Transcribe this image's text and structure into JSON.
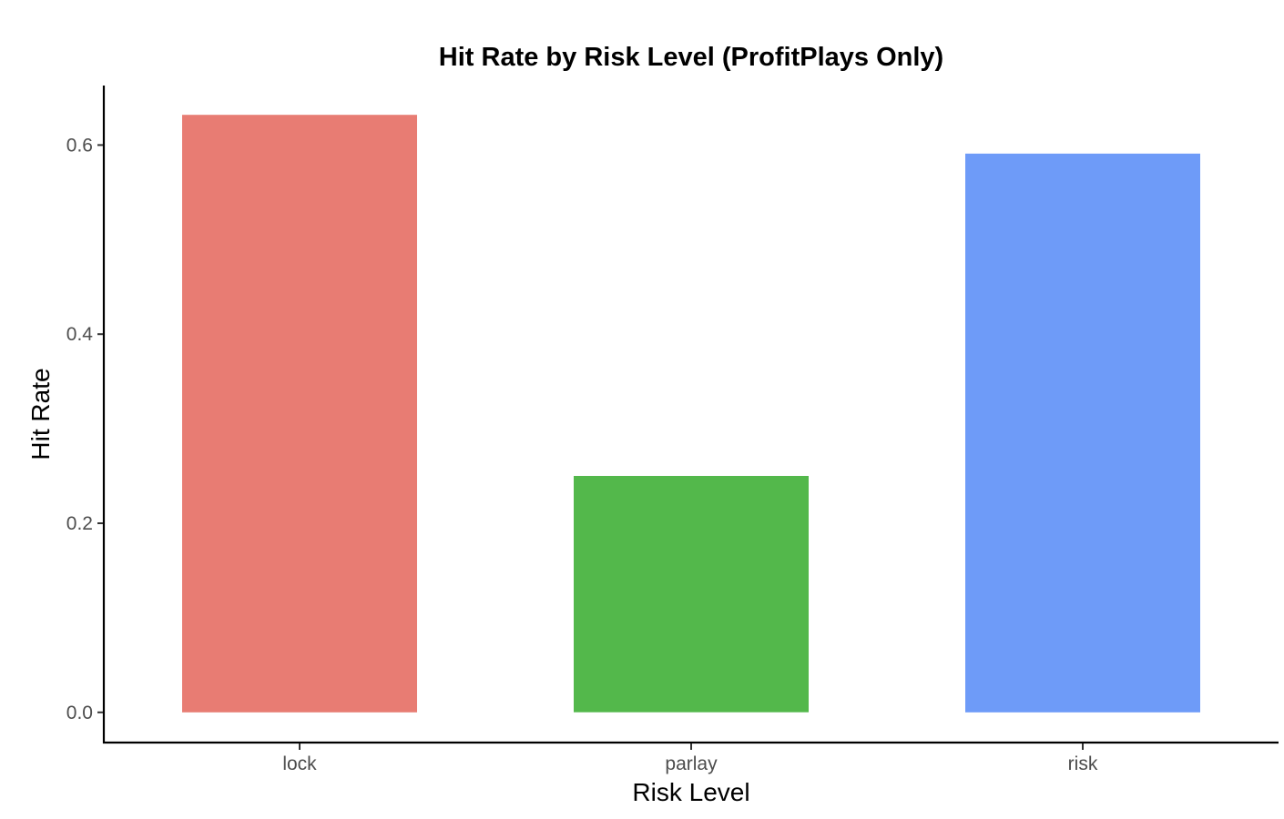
{
  "chart_data": {
    "type": "bar",
    "title": "Hit Rate by Risk Level (ProfitPlays Only)",
    "xlabel": "Risk Level",
    "ylabel": "Hit Rate",
    "categories": [
      "lock",
      "parlay",
      "risk"
    ],
    "values": [
      0.632,
      0.25,
      0.591
    ],
    "colors": [
      "#E87C73",
      "#53B84B",
      "#6E9BF8"
    ],
    "yticks": [
      "0.0",
      "0.2",
      "0.4",
      "0.6"
    ],
    "ylim": [
      -0.032,
      0.663
    ],
    "grid": false,
    "legend": "none"
  }
}
